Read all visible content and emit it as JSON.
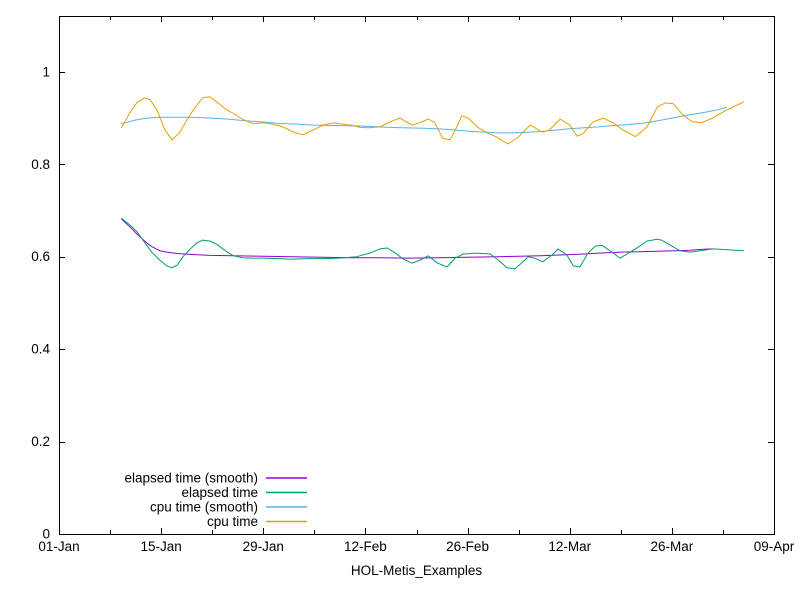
{
  "figure": {
    "background": "#ffffff",
    "text_color": "#000000",
    "axis_color": "#000000"
  },
  "chart_data": {
    "type": "line",
    "title": "",
    "xlabel": "HOL-Metis_Examples",
    "ylabel": "",
    "x_axis": {
      "unit": "days since 01-Jan",
      "range_days": [
        0,
        98
      ],
      "tick_days": [
        0,
        14,
        28,
        42,
        56,
        70,
        84,
        98
      ],
      "tick_labels": [
        "01-Jan",
        "15-Jan",
        "29-Jan",
        "12-Feb",
        "26-Feb",
        "12-Mar",
        "26-Mar",
        "09-Apr"
      ],
      "minor_tick_days": [
        7,
        21,
        35,
        49,
        63,
        77,
        91
      ]
    },
    "y_axis": {
      "range": [
        0,
        1.121
      ],
      "tick_values": [
        0,
        0.2,
        0.4,
        0.6,
        0.8,
        1
      ],
      "tick_labels": [
        "0",
        "0.2",
        "0.4",
        "0.6",
        "0.8",
        "1"
      ]
    },
    "grid": false,
    "legend": {
      "position": "inside bottom-left",
      "entries": [
        "elapsed time (smooth)",
        "elapsed time",
        "cpu time (smooth)",
        "cpu time"
      ]
    },
    "series": [
      {
        "name": "elapsed time (smooth)",
        "color": "#9400d3",
        "points": [
          [
            8.6,
            0.681
          ],
          [
            9.7,
            0.665
          ],
          [
            10.7,
            0.649
          ],
          [
            11.8,
            0.633
          ],
          [
            12.7,
            0.622
          ],
          [
            13.8,
            0.613
          ],
          [
            14.8,
            0.61
          ],
          [
            16.2,
            0.607
          ],
          [
            18,
            0.605
          ],
          [
            20.7,
            0.603
          ],
          [
            23.9,
            0.602
          ],
          [
            28,
            0.601
          ],
          [
            32,
            0.6
          ],
          [
            36,
            0.599
          ],
          [
            40,
            0.598
          ],
          [
            44,
            0.598
          ],
          [
            48,
            0.597
          ],
          [
            52,
            0.598
          ],
          [
            56,
            0.599
          ],
          [
            60,
            0.6
          ],
          [
            63,
            0.601
          ],
          [
            66,
            0.602
          ],
          [
            69,
            0.604
          ],
          [
            72,
            0.606
          ],
          [
            74,
            0.608
          ],
          [
            77,
            0.61
          ],
          [
            79.5,
            0.611
          ],
          [
            82,
            0.612
          ],
          [
            84.5,
            0.613
          ],
          [
            86.5,
            0.614
          ],
          [
            88,
            0.616
          ],
          [
            89.5,
            0.617
          ]
        ]
      },
      {
        "name": "elapsed time",
        "color": "#009e73",
        "points": [
          [
            8.6,
            0.683
          ],
          [
            9.7,
            0.669
          ],
          [
            10.7,
            0.654
          ],
          [
            11.5,
            0.636
          ],
          [
            12.7,
            0.61
          ],
          [
            13.8,
            0.593
          ],
          [
            14.8,
            0.58
          ],
          [
            15.5,
            0.576
          ],
          [
            16.2,
            0.582
          ],
          [
            17,
            0.6
          ],
          [
            18,
            0.617
          ],
          [
            18.9,
            0.63
          ],
          [
            19.7,
            0.636
          ],
          [
            20.7,
            0.634
          ],
          [
            21.7,
            0.626
          ],
          [
            22.8,
            0.613
          ],
          [
            23.9,
            0.602
          ],
          [
            25.2,
            0.598
          ],
          [
            26.6,
            0.597
          ],
          [
            28,
            0.597
          ],
          [
            30,
            0.596
          ],
          [
            32,
            0.595
          ],
          [
            34,
            0.596
          ],
          [
            36.2,
            0.596
          ],
          [
            38.5,
            0.597
          ],
          [
            40.8,
            0.6
          ],
          [
            42.6,
            0.608
          ],
          [
            44,
            0.617
          ],
          [
            45,
            0.619
          ],
          [
            46.1,
            0.608
          ],
          [
            47.2,
            0.595
          ],
          [
            48.4,
            0.586
          ],
          [
            49.5,
            0.593
          ],
          [
            50.6,
            0.602
          ],
          [
            51.9,
            0.586
          ],
          [
            53.2,
            0.578
          ],
          [
            54.3,
            0.597
          ],
          [
            55.4,
            0.606
          ],
          [
            57.3,
            0.608
          ],
          [
            59.1,
            0.606
          ],
          [
            60.2,
            0.593
          ],
          [
            61.4,
            0.576
          ],
          [
            62.5,
            0.574
          ],
          [
            63.6,
            0.589
          ],
          [
            64.3,
            0.6
          ],
          [
            65.2,
            0.597
          ],
          [
            66.3,
            0.589
          ],
          [
            67.6,
            0.604
          ],
          [
            68.4,
            0.617
          ],
          [
            69.6,
            0.604
          ],
          [
            70.5,
            0.58
          ],
          [
            71.4,
            0.578
          ],
          [
            72.5,
            0.608
          ],
          [
            73.5,
            0.623
          ],
          [
            74.4,
            0.625
          ],
          [
            75.5,
            0.613
          ],
          [
            76.9,
            0.597
          ],
          [
            78.3,
            0.61
          ],
          [
            79.5,
            0.622
          ],
          [
            80.6,
            0.634
          ],
          [
            82,
            0.638
          ],
          [
            82.6,
            0.636
          ],
          [
            83.8,
            0.625
          ],
          [
            85.1,
            0.613
          ],
          [
            86.5,
            0.61
          ],
          [
            87.9,
            0.613
          ],
          [
            89.6,
            0.617
          ],
          [
            91.6,
            0.615
          ],
          [
            93.8,
            0.613
          ]
        ]
      },
      {
        "name": "cpu time (smooth)",
        "color": "#56b4e9",
        "points": [
          [
            8.6,
            0.888
          ],
          [
            10.5,
            0.896
          ],
          [
            12,
            0.9
          ],
          [
            14,
            0.902
          ],
          [
            16,
            0.902
          ],
          [
            18,
            0.902
          ],
          [
            20,
            0.901
          ],
          [
            23,
            0.898
          ],
          [
            25,
            0.895
          ],
          [
            27.5,
            0.892
          ],
          [
            30,
            0.889
          ],
          [
            32.5,
            0.887
          ],
          [
            35,
            0.885
          ],
          [
            38,
            0.884
          ],
          [
            41,
            0.883
          ],
          [
            44,
            0.881
          ],
          [
            47,
            0.879
          ],
          [
            50,
            0.878
          ],
          [
            53,
            0.876
          ],
          [
            56,
            0.872
          ],
          [
            58,
            0.87
          ],
          [
            60,
            0.868
          ],
          [
            62,
            0.868
          ],
          [
            64,
            0.869
          ],
          [
            66,
            0.871
          ],
          [
            68,
            0.874
          ],
          [
            70,
            0.877
          ],
          [
            72,
            0.879
          ],
          [
            74,
            0.881
          ],
          [
            76,
            0.884
          ],
          [
            78,
            0.886
          ],
          [
            80,
            0.889
          ],
          [
            82,
            0.894
          ],
          [
            84,
            0.9
          ],
          [
            86,
            0.906
          ],
          [
            88,
            0.911
          ],
          [
            90,
            0.917
          ],
          [
            91.5,
            0.923
          ]
        ]
      },
      {
        "name": "cpu time",
        "color": "#e69f00",
        "points": [
          [
            8.6,
            0.88
          ],
          [
            9.7,
            0.912
          ],
          [
            10.7,
            0.934
          ],
          [
            11.7,
            0.944
          ],
          [
            12.5,
            0.94
          ],
          [
            13.5,
            0.915
          ],
          [
            14.5,
            0.875
          ],
          [
            15.5,
            0.853
          ],
          [
            16.5,
            0.868
          ],
          [
            17.5,
            0.895
          ],
          [
            18.5,
            0.92
          ],
          [
            19.7,
            0.944
          ],
          [
            20.7,
            0.946
          ],
          [
            21.7,
            0.934
          ],
          [
            22.8,
            0.92
          ],
          [
            23.9,
            0.91
          ],
          [
            25.2,
            0.897
          ],
          [
            26.6,
            0.888
          ],
          [
            28,
            0.89
          ],
          [
            29.3,
            0.887
          ],
          [
            30.7,
            0.881
          ],
          [
            32.1,
            0.87
          ],
          [
            33.4,
            0.864
          ],
          [
            34.8,
            0.874
          ],
          [
            36.2,
            0.885
          ],
          [
            37.6,
            0.89
          ],
          [
            38.9,
            0.887
          ],
          [
            40,
            0.885
          ],
          [
            41.3,
            0.88
          ],
          [
            42.6,
            0.879
          ],
          [
            44,
            0.881
          ],
          [
            45.4,
            0.892
          ],
          [
            46.7,
            0.9
          ],
          [
            48.4,
            0.885
          ],
          [
            49.5,
            0.89
          ],
          [
            50.6,
            0.898
          ],
          [
            51.5,
            0.89
          ],
          [
            52.6,
            0.856
          ],
          [
            53.6,
            0.853
          ],
          [
            54.5,
            0.88
          ],
          [
            55.2,
            0.905
          ],
          [
            56.1,
            0.9
          ],
          [
            57.3,
            0.881
          ],
          [
            58.7,
            0.868
          ],
          [
            60,
            0.859
          ],
          [
            61.5,
            0.844
          ],
          [
            62.8,
            0.857
          ],
          [
            64.6,
            0.885
          ],
          [
            66.2,
            0.87
          ],
          [
            67.2,
            0.874
          ],
          [
            68.7,
            0.898
          ],
          [
            70,
            0.885
          ],
          [
            71,
            0.861
          ],
          [
            71.8,
            0.866
          ],
          [
            73.2,
            0.892
          ],
          [
            74.6,
            0.9
          ],
          [
            75.9,
            0.89
          ],
          [
            77.3,
            0.874
          ],
          [
            79,
            0.86
          ],
          [
            80.6,
            0.881
          ],
          [
            82,
            0.924
          ],
          [
            83.1,
            0.933
          ],
          [
            84.2,
            0.931
          ],
          [
            85.5,
            0.907
          ],
          [
            86.8,
            0.892
          ],
          [
            88.1,
            0.89
          ],
          [
            89.6,
            0.9
          ],
          [
            91,
            0.913
          ],
          [
            92.4,
            0.924
          ],
          [
            93.8,
            0.935
          ]
        ]
      }
    ]
  }
}
